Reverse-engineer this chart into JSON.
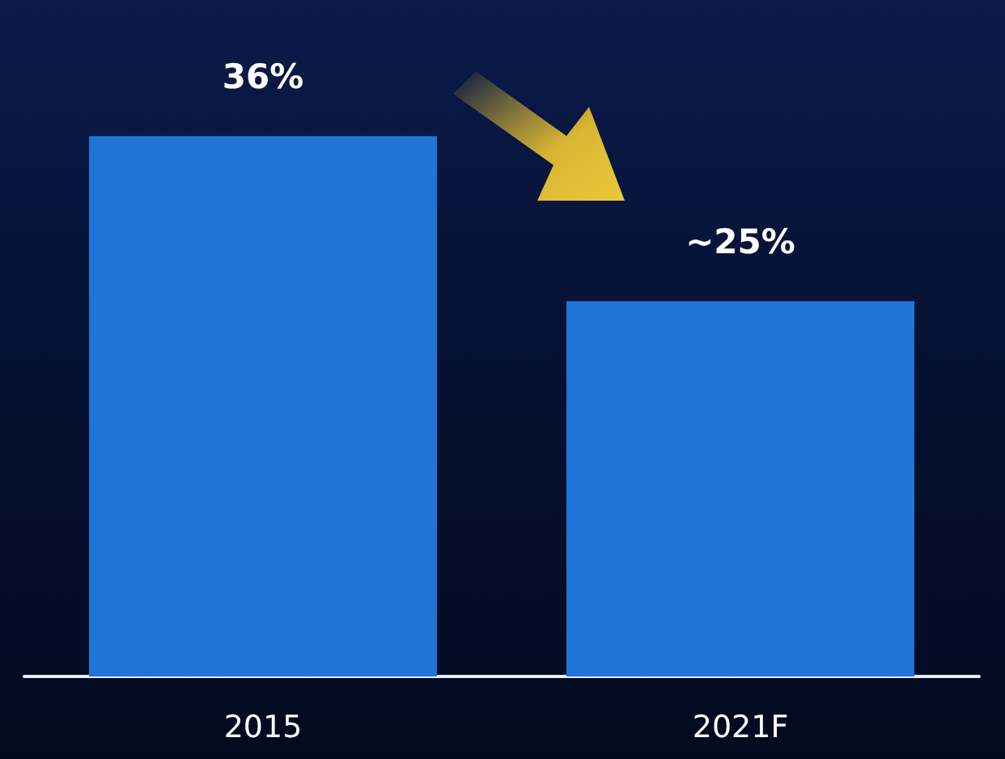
{
  "chart_data": {
    "type": "bar",
    "categories": [
      "2015",
      "2021F"
    ],
    "values": [
      36,
      25
    ],
    "value_labels": [
      "36%",
      "~25%"
    ],
    "color": "#1f74d8",
    "tick_labels": "x"
  }
}
